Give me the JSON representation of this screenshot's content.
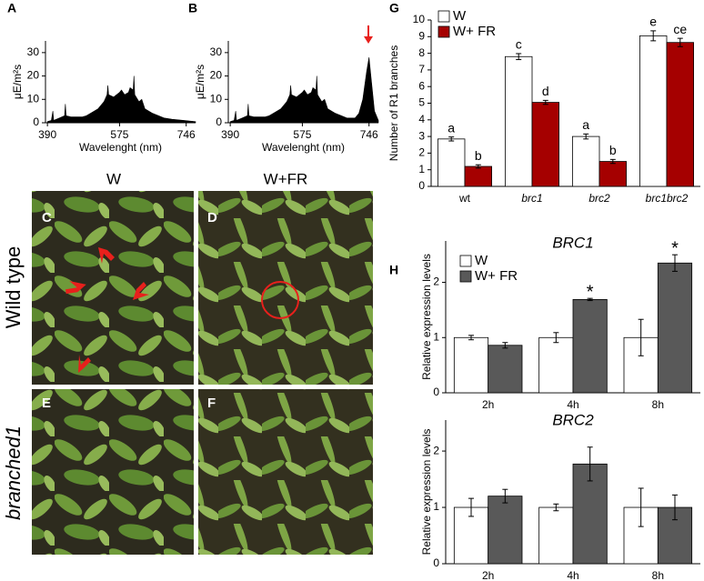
{
  "chart_data": [
    {
      "type": "area",
      "panel": "A",
      "ylabel": "μE/m²s",
      "xlabel": "Wavelenght (nm)",
      "color": "#000000",
      "x": [
        390,
        400,
        404,
        406,
        420,
        434,
        436,
        438,
        450,
        480,
        490,
        500,
        520,
        535,
        543,
        545,
        547,
        560,
        575,
        580,
        588,
        598,
        602,
        610,
        612,
        614,
        625,
        632,
        640,
        660,
        690,
        710,
        740,
        770
      ],
      "values": [
        0.5,
        1,
        5,
        1,
        2,
        3,
        8,
        3,
        2.5,
        2.5,
        3,
        4,
        6,
        9,
        12,
        16,
        12,
        11,
        13,
        14,
        12,
        13,
        15,
        14,
        20,
        12,
        9,
        10,
        6,
        4,
        2,
        1.5,
        1,
        0.5
      ],
      "xlim": [
        385,
        770
      ],
      "xticks": [
        390,
        575,
        746
      ],
      "ylim": [
        0,
        35
      ],
      "yticks": [
        0,
        10,
        20,
        30
      ]
    },
    {
      "type": "area",
      "panel": "B",
      "ylabel": "μE/m²s",
      "xlabel": "Wavelenght (nm)",
      "color": "#000000",
      "x": [
        390,
        400,
        404,
        406,
        420,
        434,
        436,
        438,
        450,
        480,
        490,
        500,
        520,
        535,
        543,
        545,
        547,
        560,
        575,
        580,
        588,
        598,
        602,
        610,
        612,
        614,
        625,
        632,
        640,
        660,
        690,
        710,
        720,
        730,
        740,
        746,
        752,
        760,
        770
      ],
      "values": [
        0.5,
        1,
        5,
        1,
        2,
        3,
        8,
        3,
        2.5,
        2.5,
        3,
        4,
        6,
        9,
        12,
        16,
        12,
        11,
        13,
        14,
        12,
        13,
        15,
        14,
        20,
        12,
        9,
        10,
        6,
        4,
        2,
        2,
        4,
        10,
        22,
        28,
        18,
        5,
        1
      ],
      "xlim": [
        385,
        770
      ],
      "xticks": [
        390,
        575,
        746
      ],
      "ylim": [
        0,
        35
      ],
      "yticks": [
        0,
        10,
        20,
        30
      ]
    },
    {
      "type": "bar",
      "panel": "G",
      "ylabel": "Number of R1 branches",
      "legend": "top-left",
      "categories": [
        "wt",
        "brc1",
        "brc2",
        "brc1brc2"
      ],
      "series": [
        {
          "name": "W",
          "color": "#ffffff",
          "values": [
            2.85,
            7.8,
            3.0,
            9.05
          ],
          "errors": [
            0.12,
            0.18,
            0.15,
            0.3
          ],
          "labels": [
            "a",
            "c",
            "a",
            "e"
          ]
        },
        {
          "name": "W+ FR",
          "color": "#a50000",
          "values": [
            1.2,
            5.05,
            1.5,
            8.65
          ],
          "errors": [
            0.1,
            0.12,
            0.12,
            0.25
          ],
          "labels": [
            "b",
            "d",
            "b",
            "ce"
          ]
        }
      ],
      "ylim": [
        0,
        10
      ],
      "yticks": [
        0,
        1,
        2,
        3,
        4,
        5,
        6,
        7,
        8,
        9,
        10
      ]
    },
    {
      "type": "bar",
      "panel": "H",
      "title": "BRC1",
      "ylabel": "Relative expression levels",
      "legend": "top-left",
      "categories": [
        "2h",
        "4h",
        "8h"
      ],
      "series": [
        {
          "name": "W",
          "color": "#ffffff",
          "values": [
            1,
            1,
            1
          ],
          "errors": [
            0.04,
            0.09,
            0.33
          ]
        },
        {
          "name": "W+ FR",
          "color": "#595959",
          "values": [
            0.86,
            1.69,
            2.35
          ],
          "errors": [
            0.05,
            0.02,
            0.15
          ],
          "labels": [
            null,
            "*",
            "*"
          ]
        }
      ],
      "ylim": [
        0,
        2.75
      ],
      "yticks": [
        0,
        1,
        2
      ]
    },
    {
      "type": "bar",
      "title": "BRC2",
      "ylabel": "Relative expression levels",
      "categories": [
        "2h",
        "4h",
        "8h"
      ],
      "series": [
        {
          "color": "#ffffff",
          "values": [
            1,
            1,
            1
          ],
          "errors": [
            0.16,
            0.06,
            0.34
          ]
        },
        {
          "color": "#595959",
          "values": [
            1.2,
            1.77,
            1.0
          ],
          "errors": [
            0.12,
            0.3,
            0.22
          ]
        }
      ],
      "ylim": [
        0,
        2.55
      ],
      "yticks": [
        0,
        1,
        2
      ]
    }
  ],
  "photos": {
    "panels": [
      "C",
      "D",
      "E",
      "F"
    ],
    "columns": [
      "W",
      "W+FR"
    ],
    "rows": [
      "Wild type",
      "branched1"
    ]
  }
}
